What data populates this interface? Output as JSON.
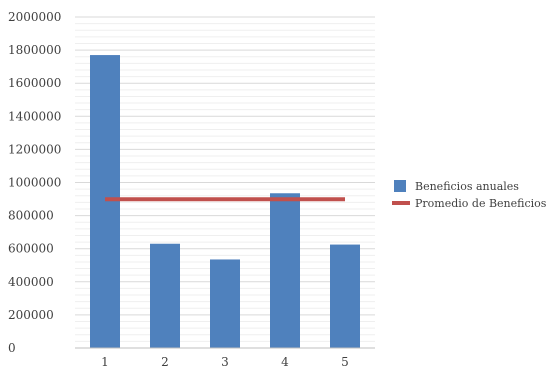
{
  "chart_data": {
    "type": "bar",
    "categories": [
      "1",
      "2",
      "3",
      "4",
      "5"
    ],
    "series": [
      {
        "name": "Beneficios anuales",
        "kind": "bar",
        "color": "#4f81bd",
        "values": [
          1770000,
          630000,
          535000,
          935000,
          625000
        ]
      },
      {
        "name": "Promedio de Beneficios",
        "kind": "line",
        "color": "#c0504d",
        "values": [
          899000,
          899000,
          899000,
          899000,
          899000
        ]
      }
    ],
    "ylim": [
      0,
      2000000
    ],
    "yticks": [
      "0",
      "200000",
      "400000",
      "600000",
      "800000",
      "1000000",
      "1200000",
      "1400000",
      "1600000",
      "1800000",
      "2000000"
    ],
    "title": "",
    "xlabel": "",
    "ylabel": "",
    "grid": true,
    "legend": "right"
  }
}
